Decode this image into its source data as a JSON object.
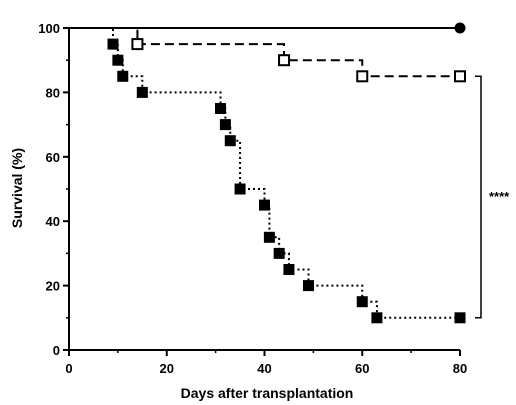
{
  "chart_data": {
    "type": "line",
    "subtype": "kaplan-meier step survival curve",
    "title": "",
    "xlabel": "Days after transplantation",
    "ylabel": "Survival (%)",
    "xlim": [
      0,
      80
    ],
    "ylim": [
      0,
      100
    ],
    "xticks": [
      0,
      20,
      40,
      60,
      80
    ],
    "yticks": [
      0,
      20,
      40,
      60,
      80,
      100
    ],
    "grid": false,
    "legend": "none",
    "series": [
      {
        "line_style": "solid",
        "marker": "filled-circle",
        "color": "#000000",
        "x": [
          80
        ],
        "y": [
          100
        ]
      },
      {
        "line_style": "dashed",
        "marker": "open-square",
        "color": "#000000",
        "x": [
          14,
          44,
          60,
          80
        ],
        "y": [
          95,
          90,
          85,
          85
        ]
      },
      {
        "line_style": "dotted",
        "marker": "filled-square",
        "color": "#000000",
        "x": [
          9,
          10,
          11,
          15,
          31,
          32,
          33,
          35,
          40,
          41,
          43,
          45,
          49,
          60,
          63,
          80
        ],
        "y": [
          95,
          90,
          85,
          80,
          75,
          70,
          65,
          50,
          45,
          35,
          30,
          25,
          20,
          15,
          10,
          10
        ]
      }
    ],
    "annotations": [
      {
        "type": "bracket",
        "text": "****",
        "y_from": 85,
        "y_to": 10
      }
    ]
  }
}
